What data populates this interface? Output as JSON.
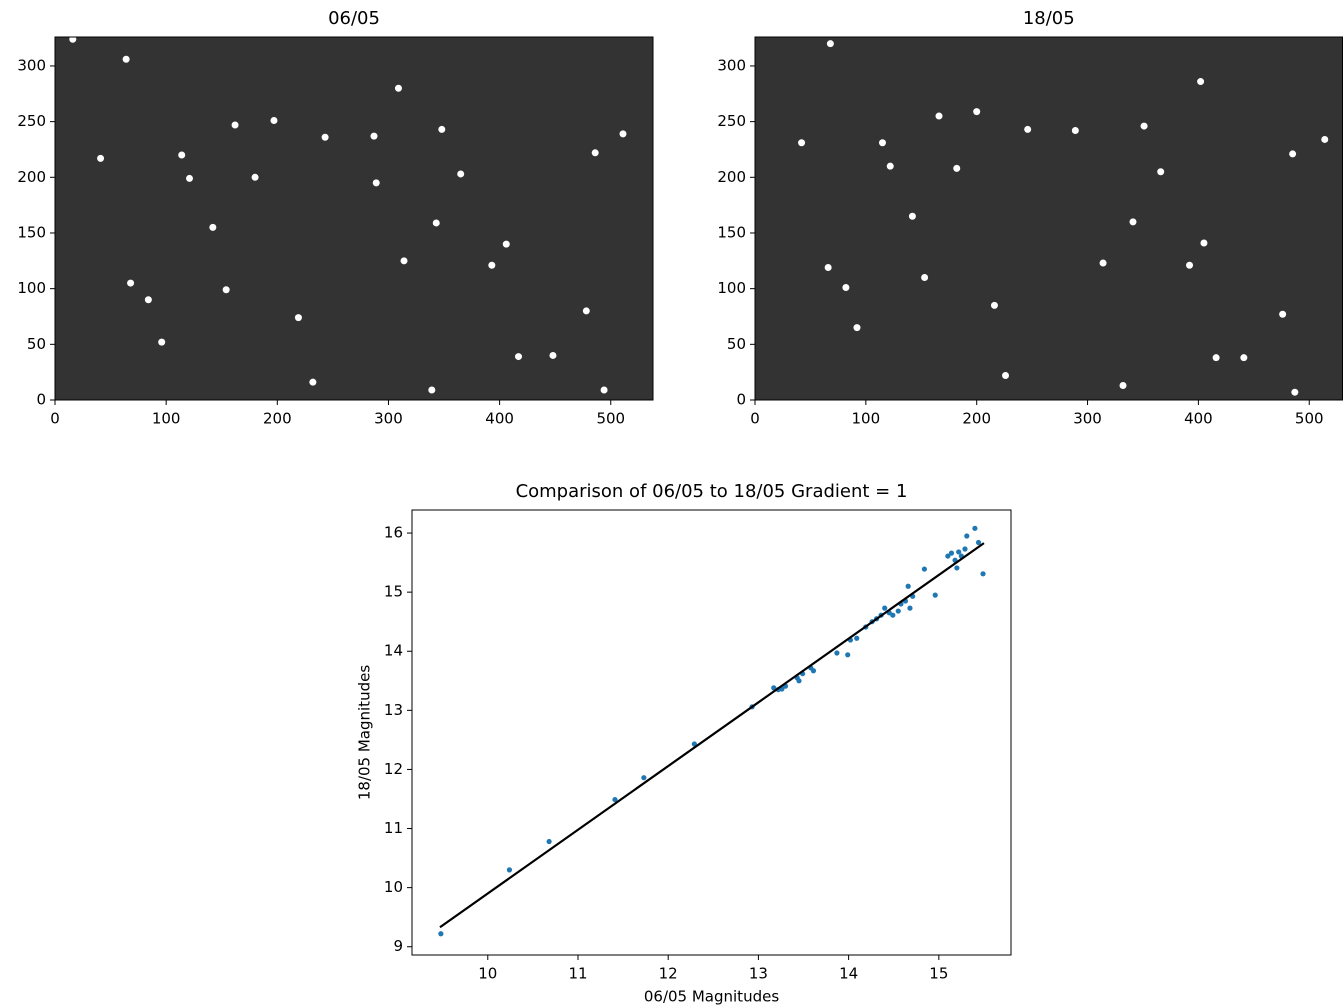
{
  "chart_data": [
    {
      "type": "image",
      "title": "06/05",
      "xlim": [
        0,
        538
      ],
      "ylim": [
        0,
        326
      ],
      "xticks": [
        0,
        100,
        200,
        300,
        400,
        500
      ],
      "yticks": [
        0,
        50,
        100,
        150,
        200,
        250,
        300
      ],
      "background": "#333333",
      "color": "#ffffff",
      "stars": {
        "x": [
          64,
          96,
          339,
          494,
          511,
          154,
          41,
          162,
          197,
          180,
          114,
          121,
          142,
          84,
          68,
          243,
          287,
          348,
          365,
          309,
          289,
          314,
          343,
          406,
          393,
          478,
          448,
          417,
          219,
          232,
          16,
          486
        ],
        "y": [
          306,
          52,
          9,
          9,
          239,
          99,
          217,
          247,
          251,
          200,
          220,
          199,
          155,
          90,
          105,
          236,
          237,
          243,
          203,
          280,
          195,
          125,
          159,
          140,
          121,
          80,
          40,
          39,
          74,
          16,
          324,
          222
        ]
      }
    },
    {
      "type": "image",
      "title": "18/05",
      "xlim": [
        0,
        530
      ],
      "ylim": [
        0,
        326
      ],
      "xticks": [
        0,
        100,
        200,
        300,
        400,
        500
      ],
      "yticks": [
        0,
        50,
        100,
        150,
        200,
        250,
        300
      ],
      "background": "#333333",
      "color": "#ffffff",
      "stars": {
        "x": [
          68,
          92,
          332,
          487,
          514,
          153,
          42,
          166,
          200,
          182,
          115,
          122,
          142,
          82,
          66,
          246,
          289,
          351,
          366,
          314,
          341,
          405,
          392,
          476,
          441,
          416,
          216,
          226,
          402,
          485
        ],
        "y": [
          320,
          65,
          13,
          7,
          234,
          110,
          231,
          255,
          259,
          208,
          231,
          210,
          165,
          101,
          119,
          243,
          242,
          246,
          205,
          123,
          160,
          141,
          121,
          77,
          38,
          38,
          85,
          22,
          286,
          221
        ]
      }
    },
    {
      "type": "scatter",
      "title": "Comparison of 06/05 to 18/05 Gradient = 1",
      "xlabel": "06/05 Magnitudes",
      "ylabel": "18/05 Magnitudes",
      "xlim": [
        9.16,
        15.8
      ],
      "ylim": [
        8.86,
        16.39
      ],
      "xticks": [
        10,
        11,
        12,
        13,
        14,
        15
      ],
      "yticks": [
        9,
        10,
        11,
        12,
        13,
        14,
        15,
        16
      ],
      "series": [
        {
          "color": "#1f77b4",
          "x": [
            9.48,
            10.24,
            10.68,
            11.41,
            11.73,
            12.29,
            12.93,
            13.17,
            13.22,
            13.26,
            13.3,
            13.43,
            13.45,
            13.49,
            13.58,
            13.61,
            13.87,
            13.99,
            14.02,
            14.09,
            14.19,
            14.26,
            14.31,
            14.36,
            14.4,
            14.45,
            14.49,
            14.55,
            14.58,
            14.63,
            14.66,
            14.68,
            14.71,
            14.84,
            14.96,
            15.1,
            15.14,
            15.18,
            15.2,
            15.22,
            15.25,
            15.29,
            15.31,
            15.4,
            15.44,
            15.49
          ],
          "values": [
            9.22,
            10.3,
            10.78,
            11.49,
            11.86,
            12.43,
            13.06,
            13.38,
            13.35,
            13.36,
            13.41,
            13.55,
            13.5,
            13.62,
            13.72,
            13.67,
            13.97,
            13.94,
            14.19,
            14.22,
            14.41,
            14.5,
            14.55,
            14.61,
            14.73,
            14.65,
            14.61,
            14.68,
            14.8,
            14.85,
            15.1,
            14.73,
            14.93,
            15.39,
            14.95,
            15.61,
            15.66,
            15.54,
            15.41,
            15.68,
            15.61,
            15.73,
            15.95,
            16.08,
            15.84,
            15.31
          ]
        }
      ],
      "fit": {
        "color": "#000000",
        "x": [
          9.47,
          15.5
        ],
        "values": [
          9.33,
          15.83
        ]
      }
    }
  ]
}
